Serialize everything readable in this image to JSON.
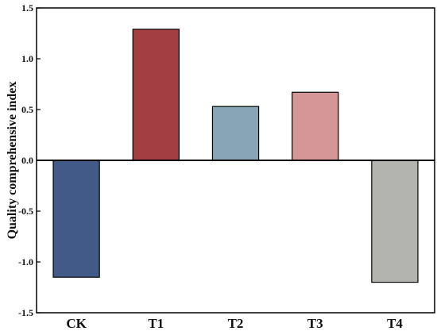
{
  "chart_data": {
    "type": "bar",
    "categories": [
      "CK",
      "T1",
      "T2",
      "T3",
      "T4"
    ],
    "values": [
      -1.15,
      1.29,
      0.53,
      0.67,
      -1.2
    ],
    "colors": [
      "#425a88",
      "#a33e42",
      "#87a5b4",
      "#d49697",
      "#b3b4af"
    ],
    "ylabel": "Quality comprehensive index",
    "ylim": [
      -1.5,
      1.5
    ],
    "yticks": [
      -1.5,
      -1.0,
      -0.5,
      0.0,
      0.5,
      1.0,
      1.5
    ],
    "ytick_labels": [
      "-1.5",
      "-1.0",
      "-0.5",
      "0.0",
      "0.5",
      "1.0",
      "1.5"
    ],
    "zero_line": true,
    "grid": false
  }
}
